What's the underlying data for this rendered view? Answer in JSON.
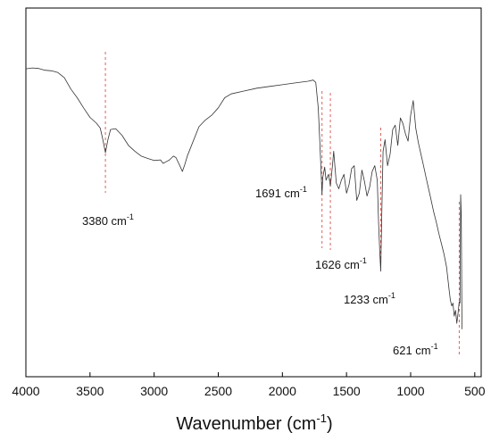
{
  "chart_data": {
    "type": "line",
    "title": "",
    "xlabel": "Wavenumber (cm",
    "xlabel_sup": "-1",
    "xlabel_close": ")",
    "ylabel": "",
    "xlim": [
      4000,
      450
    ],
    "x_reversed": true,
    "y_axis_ticks": false,
    "grid": false,
    "x_ticks": [
      4000,
      3500,
      3000,
      2500,
      2000,
      1500,
      1000,
      500
    ],
    "x_tick_labels": [
      "4000",
      "3500",
      "3000",
      "2500",
      "2000",
      "1500",
      "1000",
      "500"
    ],
    "line_color": "#333333",
    "marker_color": "#e0605a",
    "series": [
      {
        "name": "",
        "x": [
          4000,
          3950,
          3900,
          3850,
          3800,
          3750,
          3700,
          3650,
          3600,
          3550,
          3500,
          3450,
          3420,
          3400,
          3380,
          3360,
          3340,
          3300,
          3250,
          3200,
          3150,
          3100,
          3050,
          3000,
          2950,
          2930,
          2900,
          2880,
          2850,
          2830,
          2800,
          2780,
          2760,
          2740,
          2700,
          2650,
          2600,
          2550,
          2500,
          2450,
          2400,
          2300,
          2200,
          2100,
          2000,
          1900,
          1800,
          1760,
          1740,
          1720,
          1710,
          1700,
          1691,
          1685,
          1670,
          1660,
          1640,
          1626,
          1610,
          1600,
          1580,
          1560,
          1540,
          1520,
          1500,
          1480,
          1460,
          1440,
          1420,
          1400,
          1380,
          1360,
          1340,
          1320,
          1300,
          1280,
          1260,
          1250,
          1240,
          1233,
          1225,
          1215,
          1200,
          1180,
          1160,
          1140,
          1120,
          1100,
          1080,
          1060,
          1040,
          1020,
          1000,
          980,
          960,
          940,
          920,
          900,
          880,
          860,
          840,
          820,
          800,
          780,
          760,
          740,
          720,
          700,
          690,
          680,
          670,
          660,
          650,
          640,
          630,
          621,
          615,
          610,
          605,
          600
        ],
        "y": [
          93.5,
          93.8,
          93.6,
          93.0,
          92.8,
          92.2,
          90.4,
          86.5,
          83.5,
          80.0,
          76.7,
          74.7,
          73.0,
          69.0,
          64.5,
          69.0,
          72.5,
          72.8,
          70.5,
          67.0,
          65.0,
          63.3,
          62.5,
          61.8,
          62.0,
          60.8,
          61.5,
          62.0,
          63.3,
          62.8,
          60.0,
          58.0,
          60.5,
          63.5,
          68.0,
          73.5,
          75.8,
          77.5,
          80.0,
          83.5,
          84.8,
          85.8,
          86.8,
          87.4,
          88.0,
          88.6,
          89.2,
          89.6,
          88.8,
          80.0,
          70.0,
          60.0,
          50.0,
          56.0,
          59.5,
          55.0,
          57.0,
          53.0,
          60.0,
          65.0,
          54.0,
          52.0,
          55.0,
          57.0,
          50.5,
          53.5,
          59.0,
          60.0,
          48.0,
          50.5,
          58.5,
          54.5,
          49.5,
          52.5,
          58.0,
          60.0,
          55.0,
          40.0,
          29.5,
          23.5,
          44.0,
          65.0,
          69.0,
          60.0,
          64.0,
          72.5,
          74.0,
          67.0,
          76.5,
          74.5,
          71.0,
          68.5,
          77.5,
          82.5,
          73.0,
          68.0,
          64.0,
          60.0,
          56.0,
          52.0,
          48.0,
          44.0,
          40.5,
          36.5,
          33.0,
          29.5,
          25.0,
          17.0,
          13.5,
          11.5,
          12.5,
          8.0,
          10.0,
          5.5,
          9.0,
          13.0,
          12.5,
          50.0,
          43.0,
          3.5
        ]
      }
    ],
    "peak_markers": [
      3380,
      1691,
      1626,
      1233,
      621
    ],
    "annotations": [
      {
        "text": "3380 cm",
        "sup": "-1"
      },
      {
        "text": "1691 cm",
        "sup": "-1"
      },
      {
        "text": "1626 cm",
        "sup": "-1"
      },
      {
        "text": "1233 cm",
        "sup": "-1"
      },
      {
        "text": "621 cm",
        "sup": "-1"
      }
    ]
  }
}
